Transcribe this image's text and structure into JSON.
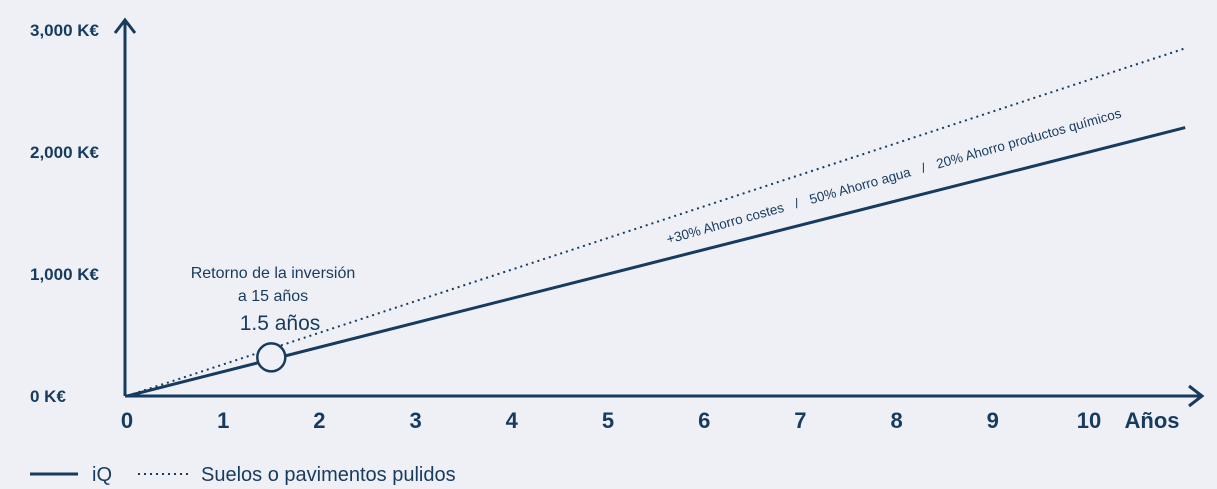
{
  "colors": {
    "background": "#eef0f5",
    "ink": "#173b5f"
  },
  "chart_data": {
    "type": "line",
    "xlabel": "Años",
    "ylabel": "",
    "x_ticks": [
      "0",
      "1",
      "2",
      "3",
      "4",
      "5",
      "6",
      "7",
      "8",
      "9",
      "10"
    ],
    "y_ticks": [
      "0 K€",
      "1,000 K€",
      "2,000 K€",
      "3,000 K€"
    ],
    "xlim": [
      0,
      11
    ],
    "ylim": [
      0,
      3000
    ],
    "grid": false,
    "legend_position": "bottom-left",
    "series": [
      {
        "name": "iQ",
        "style": "solid",
        "x": [
          0,
          11
        ],
        "y": [
          0,
          2200
        ]
      },
      {
        "name": "Suelos o pavimentos pulidos",
        "style": "dotted",
        "x": [
          0,
          11
        ],
        "y": [
          0,
          2850
        ]
      }
    ],
    "annotations": {
      "roi_line1": "Retorno de la inversión",
      "roi_line2": "a 15 años",
      "roi_value": "1.5 años",
      "roi_point": {
        "x": 1.5,
        "y": 300
      },
      "savings_costs": "+30% Ahorro costes",
      "savings_separator_1": "/",
      "savings_water": "50% Ahorro agua",
      "savings_separator_2": "/",
      "savings_chemicals": "20% Ahorro productos químicos"
    }
  }
}
